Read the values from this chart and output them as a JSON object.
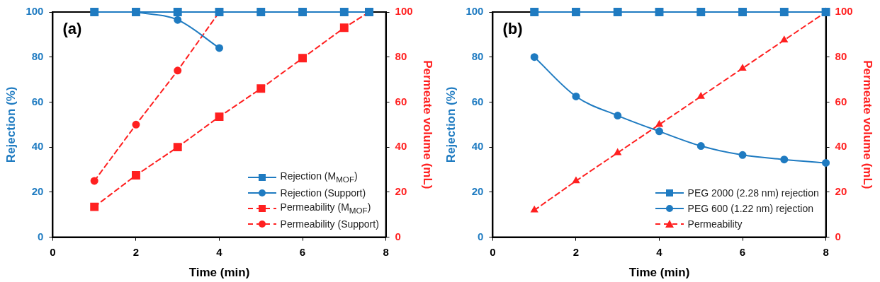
{
  "chart_data": [
    {
      "type": "line",
      "annotations": [
        "(a)"
      ],
      "xlabel": "Time (min)",
      "ylabel": "Rejection (%)",
      "y2label": "Permeate volume (mL)",
      "xlim": [
        0,
        8
      ],
      "xticks": [
        0,
        2,
        4,
        6,
        8
      ],
      "ylim": [
        0,
        100
      ],
      "yticks": [
        0,
        20,
        40,
        60,
        80,
        100
      ],
      "y2lim": [
        0,
        100
      ],
      "y2ticks": [
        0,
        20,
        40,
        60,
        80,
        100
      ],
      "grid": false,
      "legend": "bottom right",
      "series": [
        {
          "name": "Rejection (M$_{MOF}$)",
          "color": "#1f7bc1",
          "marker": "square",
          "line_style": "solid",
          "x": [
            1,
            2,
            3,
            4,
            5,
            6,
            7,
            7.6
          ],
          "values": [
            100,
            100,
            100,
            100,
            100,
            100,
            100,
            100
          ]
        },
        {
          "name": "Rejection (Support)",
          "color": "#1f7bc1",
          "marker": "circle",
          "line_style": "solid",
          "x": [
            2,
            3,
            4
          ],
          "values": [
            100,
            96.5,
            84
          ]
        },
        {
          "name": "Permeability (M$_{MOF}$)",
          "color": "#ff2020",
          "marker": "square",
          "line_style": "dashed",
          "axis": "y2",
          "x": [
            1,
            2,
            3,
            4,
            5,
            6,
            7,
            7.6
          ],
          "values": [
            13.5,
            27.5,
            40,
            53.5,
            66,
            79.5,
            93,
            100
          ]
        },
        {
          "name": "Permeability (Support)",
          "color": "#ff2020",
          "marker": "circle",
          "line_style": "dashed",
          "axis": "y2",
          "x": [
            1,
            2,
            3,
            4
          ],
          "values": [
            25,
            50,
            74,
            100
          ]
        }
      ]
    },
    {
      "type": "line",
      "annotations": [
        "(b)"
      ],
      "xlabel": "Time (min)",
      "ylabel": "Rejection (%)",
      "y2label": "Permeate volume (mL)",
      "xlim": [
        0,
        8
      ],
      "xticks": [
        0,
        2,
        4,
        6,
        8
      ],
      "ylim": [
        0,
        100
      ],
      "yticks": [
        0,
        20,
        40,
        60,
        80,
        100
      ],
      "y2lim": [
        0,
        100
      ],
      "y2ticks": [
        0,
        20,
        40,
        60,
        80,
        100
      ],
      "grid": false,
      "legend": "bottom right",
      "series": [
        {
          "name": "PEG 2000 (2.28 nm) rejection",
          "color": "#1f7bc1",
          "marker": "square",
          "line_style": "solid",
          "x": [
            1,
            2,
            3,
            4,
            5,
            6,
            7,
            8
          ],
          "values": [
            100,
            100,
            100,
            100,
            100,
            100,
            100,
            100
          ]
        },
        {
          "name": "PEG 600 (1.22 nm) rejection",
          "color": "#1f7bc1",
          "marker": "circle",
          "line_style": "solid",
          "x": [
            1,
            2,
            3,
            4,
            5,
            6,
            7,
            8
          ],
          "values": [
            80,
            62.5,
            54,
            47,
            40.5,
            36.5,
            34.5,
            33
          ]
        },
        {
          "name": "Permeability",
          "color": "#ff2020",
          "marker": "triangle",
          "line_style": "dashed",
          "axis": "y2",
          "x": [
            1,
            2,
            3,
            4,
            5,
            6,
            7,
            8
          ],
          "values": [
            12,
            25,
            37.5,
            50,
            62.5,
            75,
            87.5,
            100
          ]
        }
      ]
    }
  ]
}
